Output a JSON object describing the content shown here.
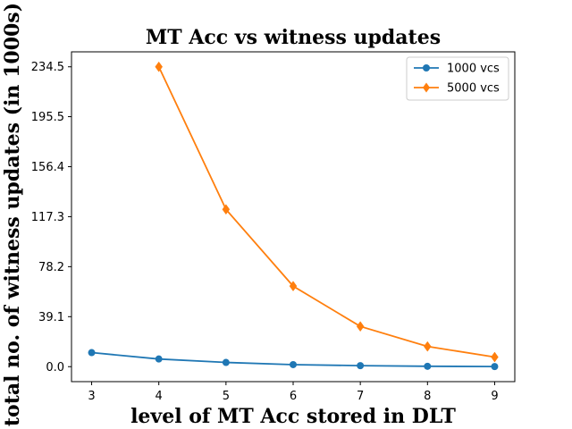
{
  "chart_data": {
    "type": "line",
    "title": "MT Acc vs witness updates",
    "xlabel": "level of MT Acc stored in DLT",
    "ylabel": "total no. of witness updates (in 1000s)",
    "x": [
      3,
      4,
      5,
      6,
      7,
      8,
      9
    ],
    "x_ticks": [
      "3",
      "4",
      "5",
      "6",
      "7",
      "8",
      "9"
    ],
    "y_ticks": [
      "0.0",
      "39.1",
      "78.2",
      "117.3",
      "156.4",
      "195.5",
      "234.5"
    ],
    "y_tick_values": [
      0.0,
      39.1,
      78.2,
      117.3,
      156.4,
      195.5,
      234.5
    ],
    "xlim": [
      2.7,
      9.3
    ],
    "ylim": [
      -11.7,
      246.2
    ],
    "grid": false,
    "legend_position": "top-right",
    "series": [
      {
        "name": "1000 vcs",
        "color": "#1f77b4",
        "marker": "circle",
        "x": [
          3,
          4,
          5,
          6,
          7,
          8,
          9
        ],
        "values": [
          11.0,
          6.0,
          3.3,
          1.6,
          0.8,
          0.3,
          0.1
        ]
      },
      {
        "name": "5000 vcs",
        "color": "#ff7f0e",
        "marker": "diamond",
        "x": [
          4,
          5,
          6,
          7,
          8,
          9
        ],
        "values": [
          234.5,
          123.0,
          63.0,
          31.5,
          15.8,
          7.5
        ]
      }
    ]
  }
}
